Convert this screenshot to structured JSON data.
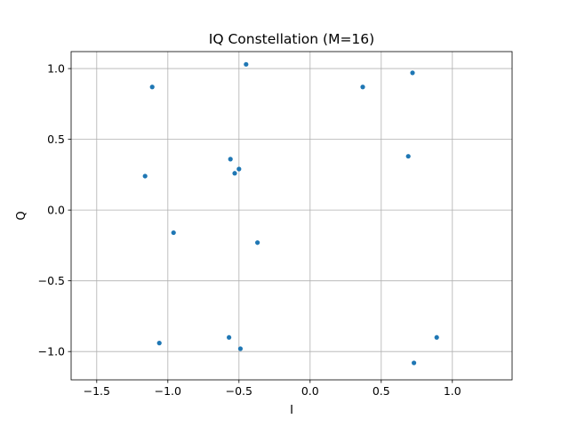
{
  "chart_data": {
    "type": "scatter",
    "title": "IQ Constellation (M=16)",
    "xlabel": "I",
    "ylabel": "Q",
    "xlim": [
      -1.68,
      1.42
    ],
    "ylim": [
      -1.2,
      1.12
    ],
    "xticks": [
      -1.5,
      -1.0,
      -0.5,
      0.0,
      0.5,
      1.0
    ],
    "xtick_labels": [
      "−1.5",
      "−1.0",
      "−0.5",
      "0.0",
      "0.5",
      "1.0"
    ],
    "yticks": [
      -1.0,
      -0.5,
      0.0,
      0.5,
      1.0
    ],
    "ytick_labels": [
      "−1.0",
      "−0.5",
      "0.0",
      "0.5",
      "1.0"
    ],
    "grid": true,
    "marker_color": "#1f77b4",
    "grid_color": "#b0b0b0",
    "points": [
      {
        "x": -0.45,
        "y": 1.03
      },
      {
        "x": -1.11,
        "y": 0.87
      },
      {
        "x": 0.37,
        "y": 0.87
      },
      {
        "x": 0.72,
        "y": 0.97
      },
      {
        "x": 0.69,
        "y": 0.38
      },
      {
        "x": -0.56,
        "y": 0.36
      },
      {
        "x": -0.5,
        "y": 0.29
      },
      {
        "x": -0.53,
        "y": 0.26
      },
      {
        "x": -1.16,
        "y": 0.24
      },
      {
        "x": -0.96,
        "y": -0.16
      },
      {
        "x": -0.37,
        "y": -0.23
      },
      {
        "x": -1.06,
        "y": -0.94
      },
      {
        "x": -0.57,
        "y": -0.9
      },
      {
        "x": -0.49,
        "y": -0.98
      },
      {
        "x": 0.89,
        "y": -0.9
      },
      {
        "x": 0.73,
        "y": -1.08
      }
    ]
  }
}
